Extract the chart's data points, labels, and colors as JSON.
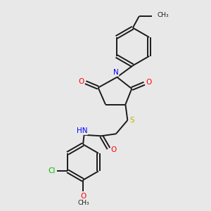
{
  "background_color": "#e8e8e8",
  "bond_color": "#1a1a1a",
  "atom_colors": {
    "O": "#ff0000",
    "N": "#0000ff",
    "S": "#b8b800",
    "Cl": "#00bb00",
    "C": "#1a1a1a",
    "H": "#1a1a1a"
  },
  "figsize": [
    3.0,
    3.0
  ],
  "dpi": 100,
  "xlim": [
    0,
    10
  ],
  "ylim": [
    0,
    10
  ],
  "lw": 1.4,
  "fs": 7.5
}
